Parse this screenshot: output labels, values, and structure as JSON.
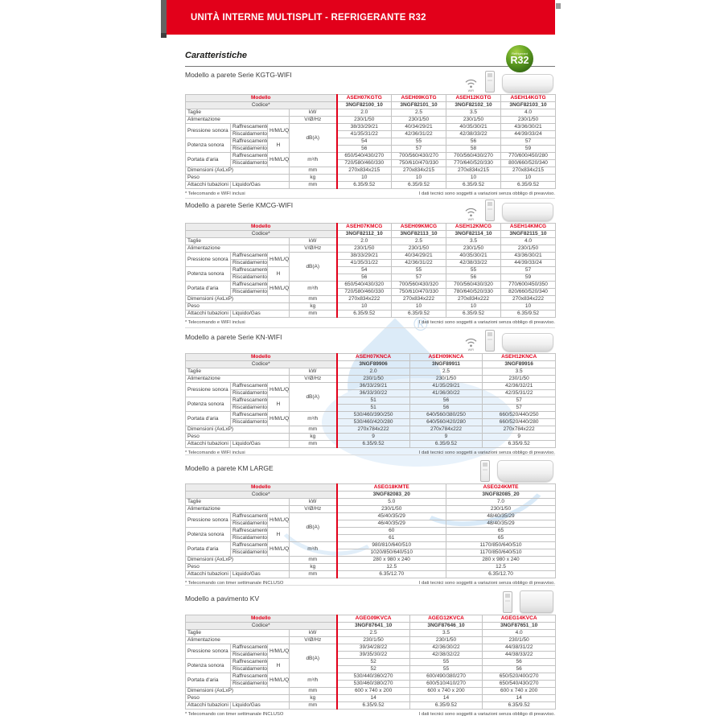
{
  "banner": {
    "title": "UNITÀ INTERNE MULTISPLIT - REFRIGERANTE R32"
  },
  "heading": "Caratteristiche",
  "badge": {
    "line1": "Refrigerant",
    "line2": "R32"
  },
  "shared": {
    "modello": "Modello",
    "codice": "Codice*",
    "row_labels": [
      "Taglie",
      "Alimentazione",
      "Pressione sonora",
      "Potenza sonora",
      "Portata d'aria",
      "Dimensioni (AxLxP)",
      "Peso",
      "Attacchi tubazioni"
    ],
    "sub_raff": "Raffrescamento",
    "sub_risc": "Riscaldamento",
    "sub_liquido": "Liquido/Gas",
    "mode_hmlq": "H/M/L/Q",
    "mode_h": "H",
    "units": {
      "taglie": "kW",
      "alimentazione": "V/Ø/Hz",
      "db": "dB(A)",
      "portata": "m³/h",
      "mm": "mm",
      "kg": "kg"
    },
    "wifi_label": "WIFI",
    "right_note": "I dati tecnici sono soggetti a variazioni senza obbligo di preavviso."
  },
  "sections": [
    {
      "label": "Modello a parete Serie KGTG-WIFI",
      "icons": {
        "wifi": true,
        "remote": true,
        "unit": "wall"
      },
      "columns": [
        {
          "model": "ASEH07KGTG",
          "code": "3NGF82100_10"
        },
        {
          "model": "ASEH09KGTG",
          "code": "3NGF82101_10"
        },
        {
          "model": "ASEH12KGTG",
          "code": "3NGF82102_10"
        },
        {
          "model": "ASEH14KGTG",
          "code": "3NGF82103_10"
        }
      ],
      "taglie": [
        "2.0",
        "2.5",
        "3.5",
        "4.0"
      ],
      "alimentazione": [
        "230/1/50",
        "230/1/50",
        "230/1/50",
        "230/1/50"
      ],
      "pressione_raff": [
        "38/33/29/21",
        "40/34/29/21",
        "40/35/30/21",
        "43/36/30/21"
      ],
      "pressione_risc": [
        "41/35/31/22",
        "42/36/31/22",
        "42/38/33/22",
        "44/39/33/24"
      ],
      "potenza_raff": [
        "54",
        "55",
        "56",
        "57"
      ],
      "potenza_risc": [
        "56",
        "57",
        "58",
        "59"
      ],
      "portata_raff": [
        "650/540/430/270",
        "700/560/430/270",
        "700/560/430/270",
        "770/600/450/280"
      ],
      "portata_risc": [
        "720/580/460/330",
        "750/610/470/330",
        "770/640/520/330",
        "800/660/520/340"
      ],
      "dimensioni": [
        "270x834x215",
        "270x834x215",
        "270x834x215",
        "270x834x215"
      ],
      "peso": [
        "10",
        "10",
        "10",
        "10"
      ],
      "attacchi": [
        "6.35/9.52",
        "6.35/9.52",
        "6.35/9.52",
        "6.35/9.52"
      ],
      "footnote_left": "* Telecomando e WIFI inclusi"
    },
    {
      "label": "Modello a parete Serie KMCG-WIFI",
      "icons": {
        "wifi": true,
        "remote": true,
        "unit": "wall"
      },
      "columns": [
        {
          "model": "ASEH07KMCG",
          "code": "3NGF82112_10"
        },
        {
          "model": "ASEH09KMCG",
          "code": "3NGF82113_10"
        },
        {
          "model": "ASEH12KMCG",
          "code": "3NGF82114_10"
        },
        {
          "model": "ASEH14KMCG",
          "code": "3NGF82115_10"
        }
      ],
      "taglie": [
        "2.0",
        "2.5",
        "3.5",
        "4.0"
      ],
      "alimentazione": [
        "230/1/50",
        "230/1/50",
        "230/1/50",
        "230/1/50"
      ],
      "pressione_raff": [
        "38/33/29/21",
        "40/34/29/21",
        "40/35/30/21",
        "43/36/30/21"
      ],
      "pressione_risc": [
        "41/35/31/22",
        "42/36/31/22",
        "42/38/33/22",
        "44/39/33/24"
      ],
      "potenza_raff": [
        "54",
        "55",
        "55",
        "57"
      ],
      "potenza_risc": [
        "56",
        "57",
        "56",
        "59"
      ],
      "portata_raff": [
        "650/540/430/320",
        "700/560/430/320",
        "700/560/430/320",
        "770/600/450/350"
      ],
      "portata_risc": [
        "720/580/460/330",
        "750/610/470/330",
        "780/640/520/330",
        "820/660/520/340"
      ],
      "dimensioni": [
        "270x834x222",
        "270x834x222",
        "270x834x222",
        "270x834x222"
      ],
      "peso": [
        "10",
        "10",
        "10",
        "10"
      ],
      "attacchi": [
        "6.35/9.52",
        "6.35/9.52",
        "6.35/9.52",
        "6.35/9.52"
      ],
      "footnote_left": "* Telecomando e WIFI inclusi"
    },
    {
      "label": "Modello a parete Serie KN-WIFI",
      "icons": {
        "wifi": true,
        "remote": true,
        "unit": "wall"
      },
      "columns": [
        {
          "model": "ASEH07KNCA",
          "code": "3NGF89906"
        },
        {
          "model": "ASEH09KNCA",
          "code": "3NGF89911"
        },
        {
          "model": "ASEH12KNCA",
          "code": "3NGF89916"
        }
      ],
      "taglie": [
        "2.0",
        "2.5",
        "3.5"
      ],
      "alimentazione": [
        "230/1/50",
        "230/1/50",
        "230/1/50"
      ],
      "pressione_raff": [
        "36/33/29/21",
        "41/35/29/21",
        "42/36/32/21"
      ],
      "pressione_risc": [
        "36/33/30/22",
        "41/36/30/22",
        "42/35/31/22"
      ],
      "potenza_raff": [
        "51",
        "56",
        "57"
      ],
      "potenza_risc": [
        "51",
        "56",
        "57"
      ],
      "portata_raff": [
        "530/460/390/250",
        "640/560/380/250",
        "660/520/440/250"
      ],
      "portata_risc": [
        "530/460/420/280",
        "640/560/420/280",
        "660/520/440/280"
      ],
      "dimensioni": [
        "270x784x222",
        "270x784x222",
        "270x784x222"
      ],
      "peso": [
        "9",
        "9",
        "9"
      ],
      "attacchi": [
        "6.35/9.52",
        "6.35/9.52",
        "6.35/9.52"
      ],
      "footnote_left": "* Telecomando e WIFI inclusi"
    },
    {
      "label": "Modello a parete KM LARGE",
      "icons": {
        "wifi": false,
        "remote": true,
        "unit": "wall-lg"
      },
      "columns": [
        {
          "model": "ASEG18KMTE",
          "code": "3NGF82083_20"
        },
        {
          "model": "ASEG24KMTE",
          "code": "3NGF82085_20"
        }
      ],
      "taglie": [
        "5.0",
        "7.0"
      ],
      "alimentazione": [
        "230/1/50",
        "230/1/50"
      ],
      "pressione_raff": [
        "45/40/35/29",
        "48/40/35/29"
      ],
      "pressione_risc": [
        "46/40/35/29",
        "48/40/35/29"
      ],
      "potenza_raff": [
        "60",
        "65"
      ],
      "potenza_risc": [
        "61",
        "65"
      ],
      "portata_raff": [
        "980/810/640/510",
        "1170/850/640/510"
      ],
      "portata_risc": [
        "1020/850/640/510",
        "1170/850/640/510"
      ],
      "dimensioni": [
        "280 x 980 x 240",
        "280 x 980 x 240"
      ],
      "peso": [
        "12.5",
        "12.5"
      ],
      "attacchi": [
        "6.35/12.70",
        "6.35/12.70"
      ],
      "footnote_left": "* Telecomando con timer settimanale INCLUSO"
    },
    {
      "label": "Modello a pavimento KV",
      "icons": {
        "wifi": false,
        "remote": true,
        "unit": "floor"
      },
      "columns": [
        {
          "model": "AGEG09KVCA",
          "code": "3NGF87641_10"
        },
        {
          "model": "AGEG12KVCA",
          "code": "3NGF87646_10"
        },
        {
          "model": "AGEG14KVCA",
          "code": "3NGF87651_10"
        }
      ],
      "taglie": [
        "2.5",
        "3.5",
        "4.0"
      ],
      "alimentazione": [
        "230/1/50",
        "230/1/50",
        "230/1/50"
      ],
      "pressione_raff": [
        "39/34/28/22",
        "42/36/30/22",
        "44/38/31/22"
      ],
      "pressione_risc": [
        "39/35/30/22",
        "42/38/32/22",
        "44/38/33/22"
      ],
      "potenza_raff": [
        "52",
        "55",
        "56"
      ],
      "potenza_risc": [
        "52",
        "55",
        "56"
      ],
      "portata_raff": [
        "530/440/360/270",
        "600/490/380/270",
        "650/520/400/270"
      ],
      "portata_risc": [
        "530/460/380/270",
        "600/510/410/270",
        "650/540/430/270"
      ],
      "dimensioni": [
        "600 x 740 x 200",
        "600 x 740 x 200",
        "600 x 740 x 200"
      ],
      "peso": [
        "14",
        "14",
        "14"
      ],
      "attacchi": [
        "6.35/9.52",
        "6.35/9.52",
        "6.35/9.52"
      ],
      "footnote_left": "* Telecomando con timer settimanale INCLUSO"
    }
  ]
}
